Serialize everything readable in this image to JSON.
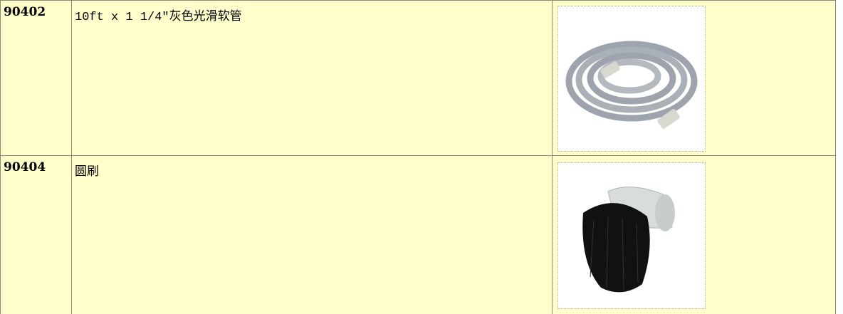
{
  "table": {
    "rows": [
      [
        "90402",
        "10ft x 1 1/4″灰色光滑软管"
      ],
      [
        "90404",
        "圆刷"
      ]
    ]
  }
}
